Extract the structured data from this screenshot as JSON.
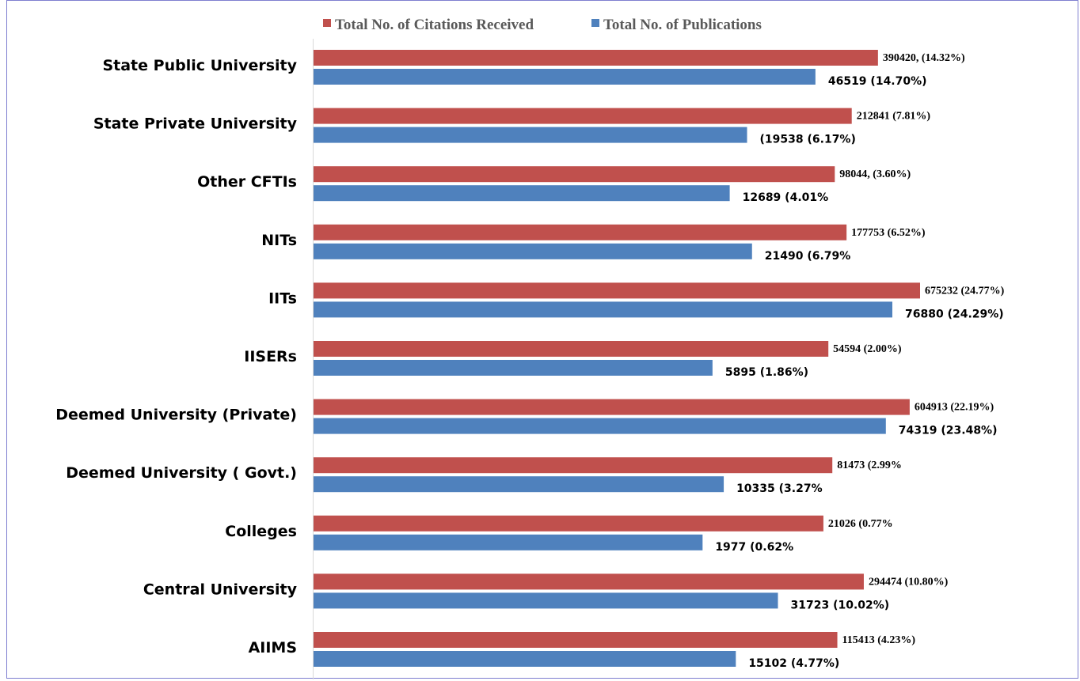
{
  "chart_data": {
    "type": "bar",
    "orientation": "horizontal",
    "categories": [
      "State Public University",
      "State Private University",
      "Other CFTIs",
      "NITs",
      "IITs",
      "IISERs",
      "Deemed University (Private)",
      "Deemed University ( Govt.)",
      "Colleges",
      "Central University",
      "AIIMS"
    ],
    "series": [
      {
        "name": "Total No. of Citations Received",
        "color": "#c0504d",
        "values": [
          390420,
          212841,
          98044,
          177753,
          675232,
          54594,
          604913,
          81473,
          21026,
          294474,
          115413
        ],
        "labels": [
          "390420, (14.32%)",
          "212841 (7.81%)",
          "98044, (3.60%)",
          "177753 (6.52%)",
          "675232 (24.77%)",
          "54594 (2.00%)",
          "604913 (22.19%)",
          "81473 (2.99%",
          "21026  (0.77%",
          "294474 (10.80%)",
          "115413 (4.23%)"
        ]
      },
      {
        "name": "Total No. of Publications",
        "color": "#4f81bd",
        "values": [
          46519,
          19538,
          12689,
          21490,
          76880,
          5895,
          74319,
          10335,
          1977,
          31723,
          15102
        ],
        "labels": [
          "46519 (14.70%)",
          "(19538 (6.17%)",
          "12689 (4.01%",
          "21490 (6.79%",
          "76880 (24.29%)",
          "5895 (1.86%)",
          "74319 (23.48%)",
          "10335 (3.27%",
          "1977 (0.62%",
          "31723 (10.02%)",
          "15102 (4.77%)"
        ]
      }
    ],
    "legend_position": "top",
    "grid": false
  }
}
